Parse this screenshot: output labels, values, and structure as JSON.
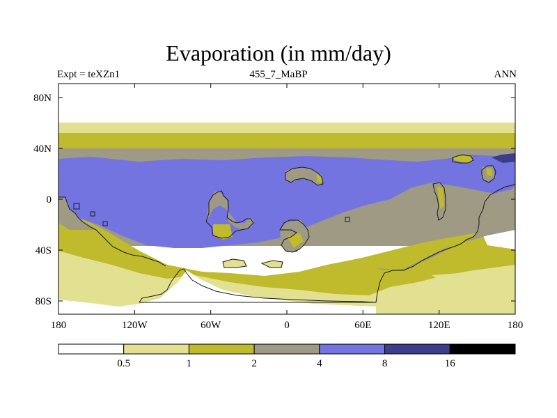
{
  "title": "Evaporation (in mm/day)",
  "subtitle": {
    "left": "Expt = teXZn1",
    "center": "455_7_MaBP",
    "right": "ANN"
  },
  "axes": {
    "y_ticks": [
      "80N",
      "40N",
      "0",
      "40S",
      "80S"
    ],
    "x_ticks": [
      "180",
      "120W",
      "60W",
      "0",
      "60E",
      "120E",
      "180"
    ]
  },
  "colorbar": {
    "colors": [
      "#ffffff",
      "#e2e091",
      "#bfbb2c",
      "#9e9a83",
      "#7474e1",
      "#3d3d8e",
      "#000000"
    ],
    "labels": [
      "0.5",
      "1",
      "2",
      "4",
      "8",
      "16"
    ]
  }
}
